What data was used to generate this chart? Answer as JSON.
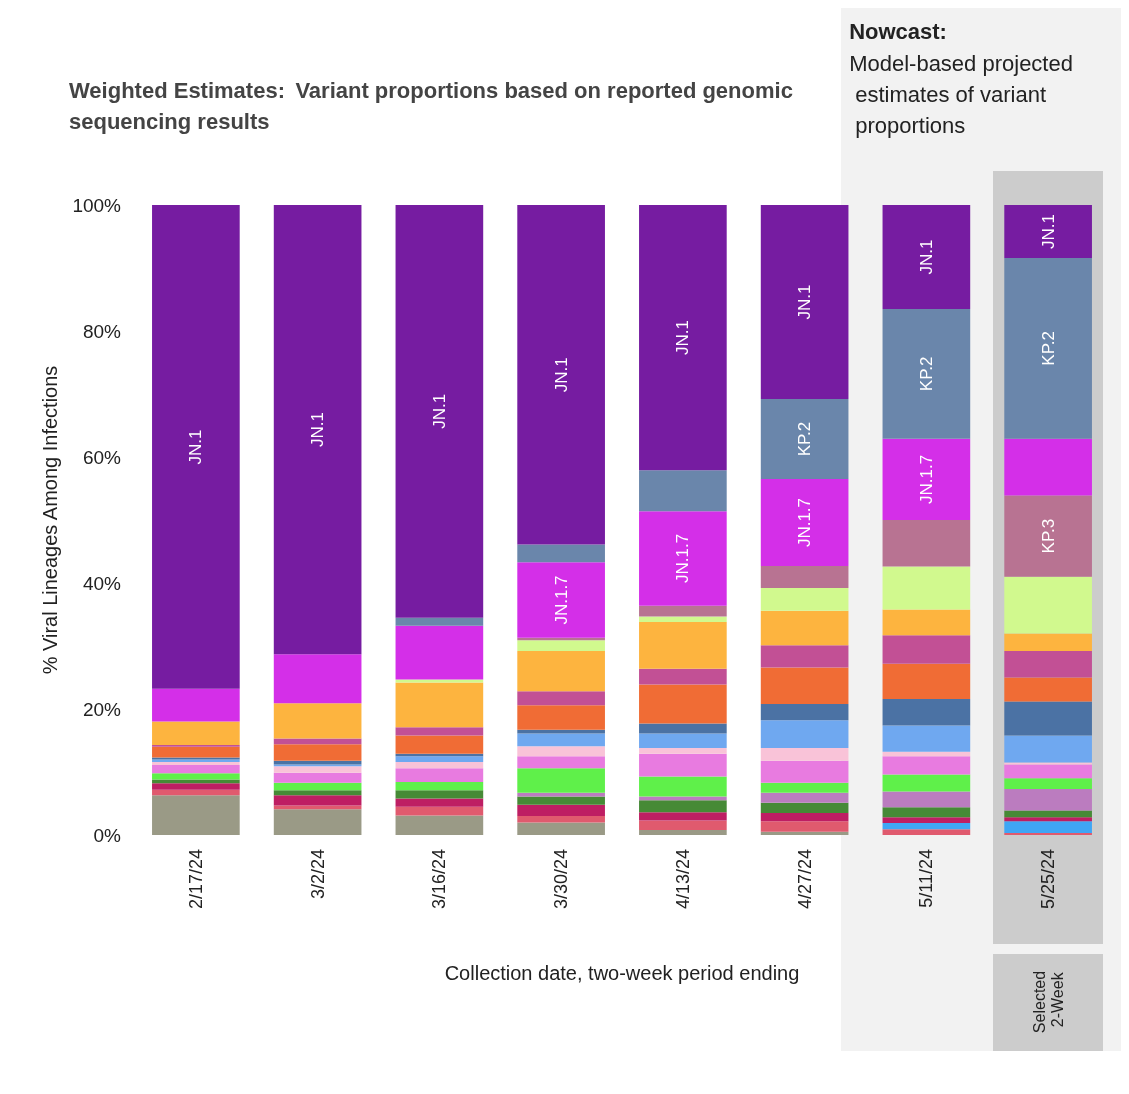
{
  "chart_data": {
    "type": "bar",
    "stacked": true,
    "title": "Weighted Estimates:",
    "subtitle": "Variant proportions based on reported genomic sequencing results",
    "xlabel": "Collection date, two-week period ending",
    "ylabel": "% Viral Lineages Among Infections",
    "categories": [
      "2/17/24",
      "3/2/24",
      "3/16/24",
      "3/30/24",
      "4/13/24",
      "4/27/24",
      "5/11/24",
      "5/25/24"
    ],
    "ylim": [
      0,
      100
    ],
    "yticks": [
      {
        "value": 0,
        "label": "0%"
      },
      {
        "value": 20,
        "label": "20%"
      },
      {
        "value": 40,
        "label": "40%"
      },
      {
        "value": 60,
        "label": "60%"
      },
      {
        "value": 80,
        "label": "80%"
      },
      {
        "value": 100,
        "label": "100%"
      }
    ],
    "grid": false,
    "legend": false,
    "bands": [
      {
        "axis": "x",
        "from": "5/25/24",
        "to": "5/25/24",
        "color": "#cccccc"
      }
    ],
    "annotations": [
      "Nowcast:",
      "Model-based projected estimates of variant proportions",
      "Selected 2-Week"
    ],
    "series": [
      {
        "color": "#9a9a86",
        "values": [
          6.3,
          4.1,
          3.1,
          2.0,
          0.8,
          0.5,
          0,
          0
        ]
      },
      {
        "color": "#e05a6e",
        "values": [
          0.9,
          0.6,
          1.4,
          1.0,
          1.5,
          1.7,
          0.9,
          0.3
        ]
      },
      {
        "color": "#3fa6f5",
        "values": [
          0,
          0,
          0,
          0,
          0,
          0,
          1.0,
          1.9
        ]
      },
      {
        "color": "#be1e63",
        "values": [
          1.0,
          1.6,
          1.3,
          1.8,
          1.3,
          1.3,
          0.9,
          0.6
        ]
      },
      {
        "color": "#468a36",
        "values": [
          0.6,
          0.8,
          1.3,
          1.3,
          1.9,
          1.6,
          1.6,
          1.1
        ]
      },
      {
        "color": "#bb7cbf",
        "values": [
          0,
          0,
          0,
          0.6,
          0.6,
          1.6,
          2.5,
          3.4
        ]
      },
      {
        "color": "#5ff04a",
        "values": [
          1.0,
          1.2,
          1.3,
          3.9,
          3.2,
          1.6,
          2.7,
          1.7
        ]
      },
      {
        "color": "#e87be0",
        "values": [
          1.3,
          1.6,
          2.2,
          1.9,
          3.6,
          3.5,
          2.9,
          2.2
        ]
      },
      {
        "color": "#f9c3d8",
        "values": [
          0.5,
          1.0,
          1.0,
          1.6,
          0.9,
          2.0,
          0.7,
          0.3
        ]
      },
      {
        "color": "#6fa8f0",
        "values": [
          0.4,
          0.3,
          0.9,
          2.0,
          2.3,
          4.4,
          4.2,
          4.3
        ]
      },
      {
        "color": "#4b72a4",
        "values": [
          0.3,
          0.6,
          0.4,
          0.6,
          1.6,
          2.6,
          4.2,
          5.4
        ]
      },
      {
        "color": "#f06c35",
        "values": [
          1.7,
          2.6,
          2.9,
          3.9,
          6.2,
          5.8,
          5.6,
          3.8
        ]
      },
      {
        "color": "#c25095",
        "values": [
          0.3,
          0.9,
          1.3,
          2.2,
          2.5,
          3.5,
          4.5,
          4.2
        ]
      },
      {
        "color": "#fdb43f",
        "values": [
          3.7,
          5.6,
          7.1,
          6.4,
          7.4,
          5.5,
          4.1,
          2.8
        ]
      },
      {
        "color": "#d1f98e",
        "values": [
          0,
          0,
          0.5,
          1.7,
          0.9,
          3.6,
          6.8,
          9.0
        ]
      },
      {
        "color": "#b87392",
        "values": [
          0,
          0,
          0,
          0.4,
          1.7,
          3.5,
          7.4,
          12.9
        ],
        "value_labels": [
          null,
          null,
          null,
          null,
          null,
          null,
          null,
          "KP.3"
        ]
      },
      {
        "color": "#d42fe8",
        "values": [
          5.2,
          7.8,
          8.5,
          12.0,
          15.0,
          13.8,
          12.9,
          9.0
        ],
        "value_labels": [
          null,
          null,
          null,
          "JN.1.7",
          "JN.1.7",
          "JN.1.7",
          "JN.1.7",
          null
        ]
      },
      {
        "color": "#6a86ab",
        "values": [
          0,
          0,
          1.3,
          2.8,
          6.5,
          12.7,
          20.6,
          28.7
        ],
        "value_labels": [
          null,
          null,
          null,
          null,
          null,
          "KP.2",
          "KP.2",
          "KP.2"
        ]
      },
      {
        "color": "#761ca1",
        "values": [
          76.8,
          71.3,
          65.5,
          53.9,
          42.1,
          30.8,
          16.5,
          8.4
        ],
        "value_labels": [
          "JN.1",
          "JN.1",
          "JN.1",
          "JN.1",
          "JN.1",
          "JN.1",
          "JN.1",
          "JN.1"
        ]
      }
    ]
  }
}
